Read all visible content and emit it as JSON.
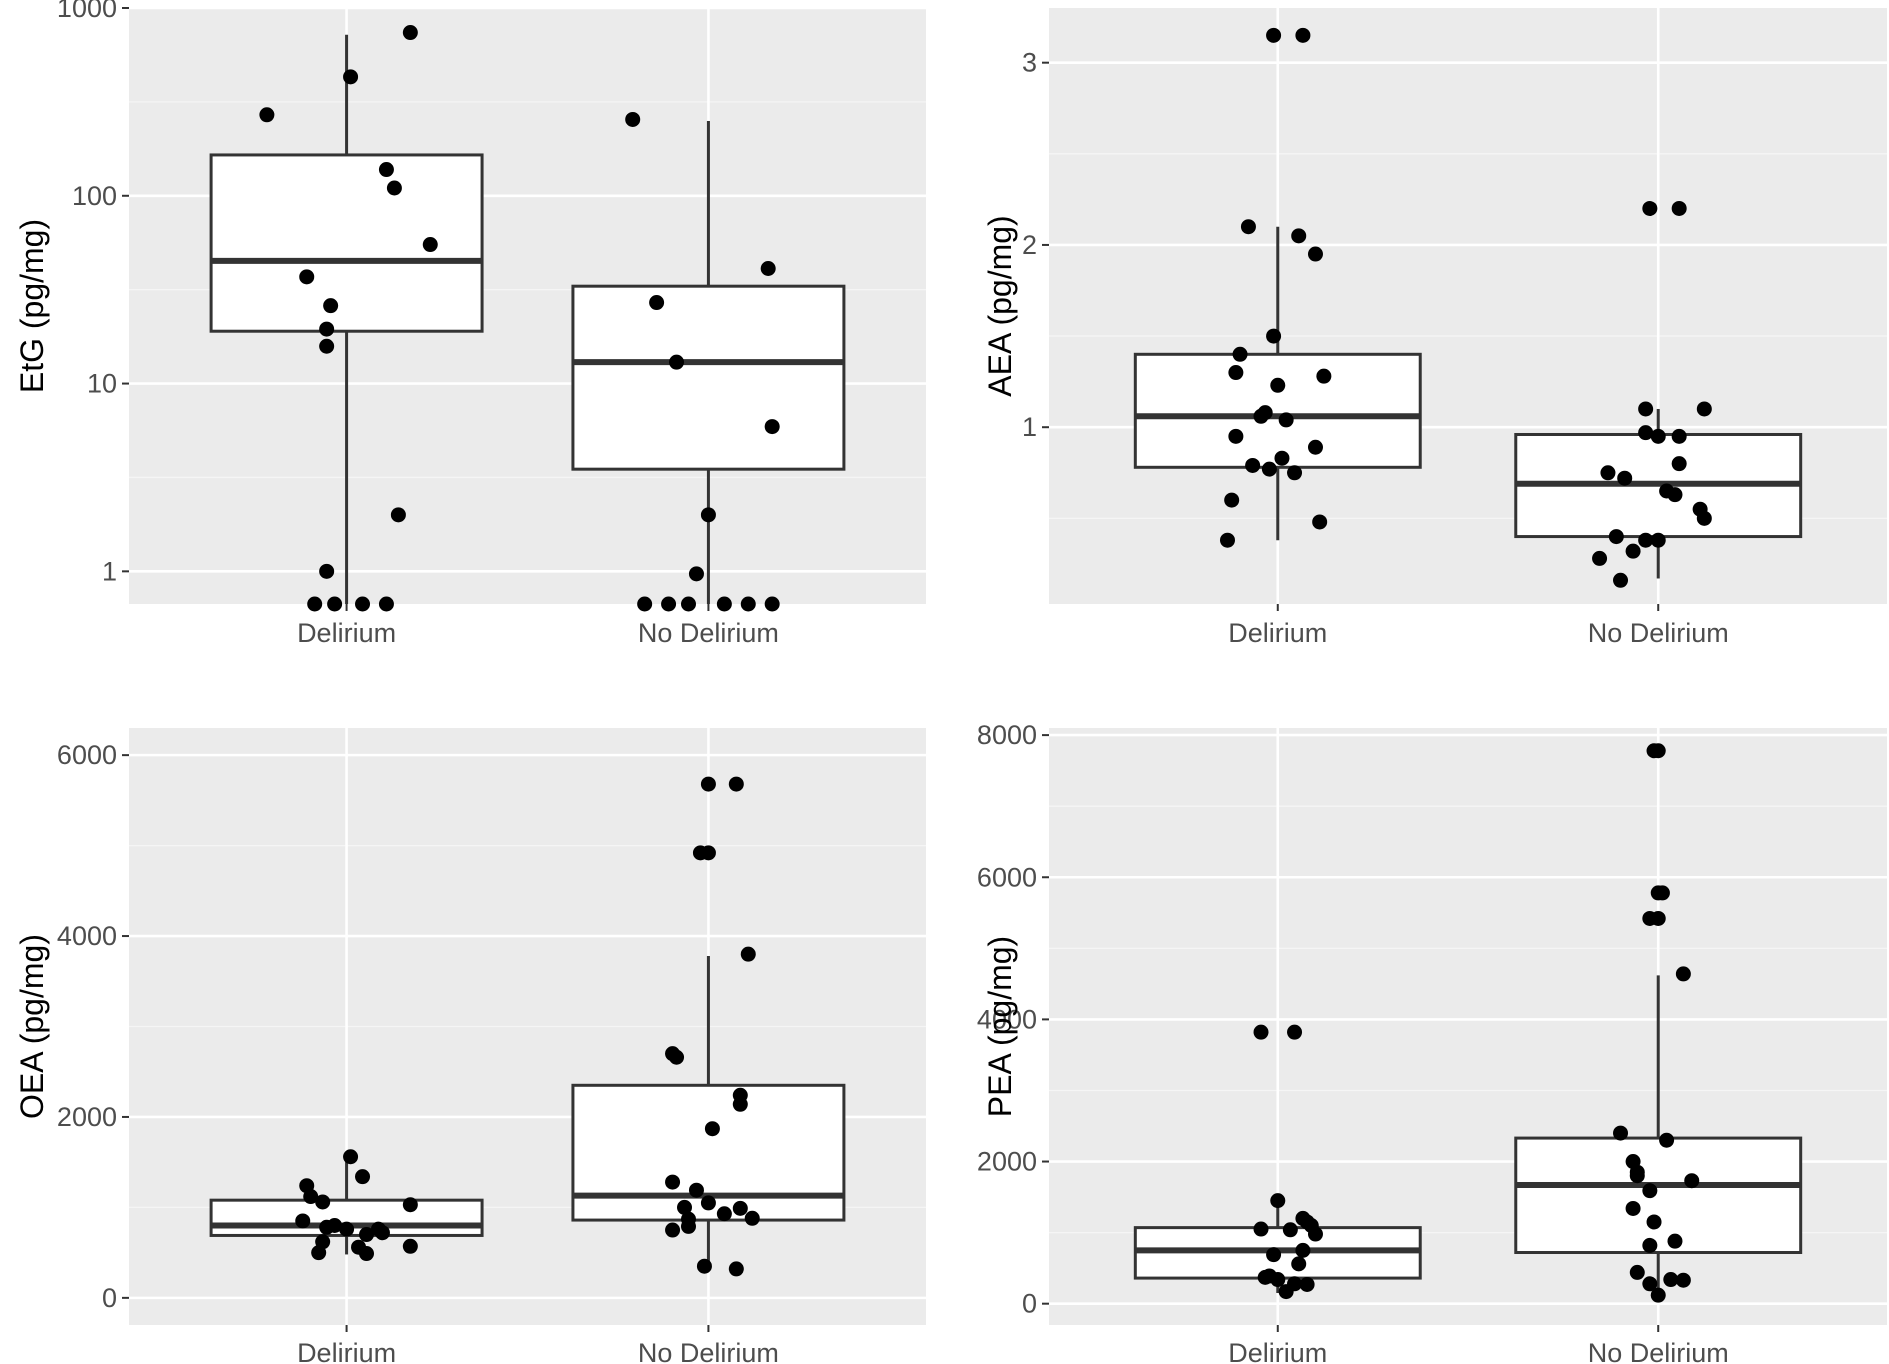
{
  "chart_data": [
    {
      "type": "box",
      "panel": "top-left",
      "ylabel": "EtG (pg/mg)",
      "yscale": "log10",
      "ylim": [
        0.67,
        1000
      ],
      "yticks": [
        1,
        10,
        100,
        1000
      ],
      "ytick_labels": [
        "1",
        "10",
        "100",
        "1000"
      ],
      "categories": [
        "Delirium",
        "No Delirium"
      ],
      "boxes": [
        {
          "q1": 19,
          "median": 45,
          "q3": 165,
          "whisker_low": 0.67,
          "whisker_high": 720
        },
        {
          "q1": 3.5,
          "median": 13,
          "q3": 33,
          "whisker_low": 0.67,
          "whisker_high": 250
        }
      ],
      "points": [
        [
          {
            "y": 740,
            "dx": 0.16
          },
          {
            "y": 430,
            "dx": 0.01
          },
          {
            "y": 270,
            "dx": -0.2
          },
          {
            "y": 138,
            "dx": 0.1
          },
          {
            "y": 110,
            "dx": 0.12
          },
          {
            "y": 55,
            "dx": 0.21
          },
          {
            "y": 37,
            "dx": -0.1
          },
          {
            "y": 26,
            "dx": -0.04
          },
          {
            "y": 19.5,
            "dx": -0.05
          },
          {
            "y": 15.8,
            "dx": -0.05
          },
          {
            "y": 2.0,
            "dx": 0.13
          },
          {
            "y": 1.0,
            "dx": -0.05
          },
          {
            "y": 0.67,
            "dx": -0.08
          },
          {
            "y": 0.67,
            "dx": -0.03
          },
          {
            "y": 0.67,
            "dx": 0.04
          },
          {
            "y": 0.67,
            "dx": 0.1
          }
        ],
        [
          {
            "y": 255,
            "dx": -0.19
          },
          {
            "y": 41,
            "dx": 0.15
          },
          {
            "y": 27,
            "dx": -0.13
          },
          {
            "y": 13,
            "dx": -0.08
          },
          {
            "y": 5.9,
            "dx": 0.16
          },
          {
            "y": 2.0,
            "dx": 0.0
          },
          {
            "y": 0.97,
            "dx": -0.03
          },
          {
            "y": 0.67,
            "dx": -0.16
          },
          {
            "y": 0.67,
            "dx": -0.1
          },
          {
            "y": 0.67,
            "dx": -0.05
          },
          {
            "y": 0.67,
            "dx": 0.04
          },
          {
            "y": 0.67,
            "dx": 0.1
          },
          {
            "y": 0.67,
            "dx": 0.16
          }
        ]
      ]
    },
    {
      "type": "box",
      "panel": "top-right",
      "ylabel": "AEA (pg/mg)",
      "yscale": "linear",
      "ylim": [
        0.03,
        3.3
      ],
      "yticks": [
        1,
        2,
        3
      ],
      "ytick_labels": [
        "1",
        "2",
        "3"
      ],
      "minor_yticks": [
        0.5,
        1.5,
        2.5
      ],
      "categories": [
        "Delirium",
        "No Delirium"
      ],
      "boxes": [
        {
          "q1": 0.78,
          "median": 1.06,
          "q3": 1.4,
          "whisker_low": 0.38,
          "whisker_high": 2.1
        },
        {
          "q1": 0.4,
          "median": 0.69,
          "q3": 0.96,
          "whisker_low": 0.17,
          "whisker_high": 1.1
        }
      ],
      "points": [
        [
          {
            "y": 3.15,
            "dx": -0.01
          },
          {
            "y": 3.15,
            "dx": 0.06
          },
          {
            "y": 2.1,
            "dx": -0.07
          },
          {
            "y": 2.05,
            "dx": 0.05
          },
          {
            "y": 1.95,
            "dx": 0.09
          },
          {
            "y": 1.5,
            "dx": -0.01
          },
          {
            "y": 1.4,
            "dx": -0.09
          },
          {
            "y": 1.3,
            "dx": -0.1
          },
          {
            "y": 1.28,
            "dx": 0.11
          },
          {
            "y": 1.23,
            "dx": 0.0
          },
          {
            "y": 1.08,
            "dx": -0.03
          },
          {
            "y": 1.06,
            "dx": -0.04
          },
          {
            "y": 1.04,
            "dx": 0.02
          },
          {
            "y": 0.95,
            "dx": -0.1
          },
          {
            "y": 0.89,
            "dx": 0.09
          },
          {
            "y": 0.83,
            "dx": 0.01
          },
          {
            "y": 0.79,
            "dx": -0.06
          },
          {
            "y": 0.77,
            "dx": -0.02
          },
          {
            "y": 0.75,
            "dx": 0.04
          },
          {
            "y": 0.6,
            "dx": -0.11
          },
          {
            "y": 0.48,
            "dx": 0.1
          },
          {
            "y": 0.38,
            "dx": -0.12
          }
        ],
        [
          {
            "y": 2.2,
            "dx": -0.02
          },
          {
            "y": 2.2,
            "dx": 0.05
          },
          {
            "y": 1.1,
            "dx": -0.03
          },
          {
            "y": 1.1,
            "dx": 0.11
          },
          {
            "y": 0.97,
            "dx": -0.03
          },
          {
            "y": 0.95,
            "dx": 0.0
          },
          {
            "y": 0.95,
            "dx": 0.05
          },
          {
            "y": 0.8,
            "dx": 0.05
          },
          {
            "y": 0.75,
            "dx": -0.12
          },
          {
            "y": 0.72,
            "dx": -0.08
          },
          {
            "y": 0.65,
            "dx": 0.02
          },
          {
            "y": 0.63,
            "dx": 0.04
          },
          {
            "y": 0.55,
            "dx": 0.1
          },
          {
            "y": 0.5,
            "dx": 0.11
          },
          {
            "y": 0.4,
            "dx": -0.1
          },
          {
            "y": 0.38,
            "dx": -0.03
          },
          {
            "y": 0.38,
            "dx": 0.0
          },
          {
            "y": 0.32,
            "dx": -0.06
          },
          {
            "y": 0.28,
            "dx": -0.14
          },
          {
            "y": 0.16,
            "dx": -0.09
          }
        ]
      ]
    },
    {
      "type": "box",
      "panel": "bottom-left",
      "ylabel": "OEA (pg/mg)",
      "yscale": "linear",
      "ylim": [
        -300,
        6300
      ],
      "yticks": [
        0,
        2000,
        4000,
        6000
      ],
      "ytick_labels": [
        "0",
        "2000",
        "4000",
        "6000"
      ],
      "minor_yticks": [
        1000,
        3000,
        5000
      ],
      "categories": [
        "Delirium",
        "No Delirium"
      ],
      "boxes": [
        {
          "q1": 690,
          "median": 800,
          "q3": 1080,
          "whisker_low": 480,
          "whisker_high": 1560
        },
        {
          "q1": 860,
          "median": 1130,
          "q3": 2350,
          "whisker_low": 300,
          "whisker_high": 3780
        }
      ],
      "points": [
        [
          {
            "y": 1560,
            "dx": 0.01
          },
          {
            "y": 1340,
            "dx": 0.04
          },
          {
            "y": 1240,
            "dx": -0.1
          },
          {
            "y": 1120,
            "dx": -0.09
          },
          {
            "y": 1060,
            "dx": -0.06
          },
          {
            "y": 1030,
            "dx": 0.16
          },
          {
            "y": 850,
            "dx": -0.11
          },
          {
            "y": 800,
            "dx": -0.03
          },
          {
            "y": 780,
            "dx": -0.05
          },
          {
            "y": 760,
            "dx": 0.0
          },
          {
            "y": 760,
            "dx": 0.08
          },
          {
            "y": 720,
            "dx": 0.09
          },
          {
            "y": 700,
            "dx": 0.05
          },
          {
            "y": 620,
            "dx": -0.06
          },
          {
            "y": 570,
            "dx": 0.16
          },
          {
            "y": 560,
            "dx": 0.03
          },
          {
            "y": 500,
            "dx": -0.07
          },
          {
            "y": 490,
            "dx": 0.05
          }
        ],
        [
          {
            "y": 5680,
            "dx": 0.0
          },
          {
            "y": 5680,
            "dx": 0.07
          },
          {
            "y": 4920,
            "dx": -0.02
          },
          {
            "y": 4920,
            "dx": 0.0
          },
          {
            "y": 3800,
            "dx": 0.1
          },
          {
            "y": 2700,
            "dx": -0.09
          },
          {
            "y": 2660,
            "dx": -0.08
          },
          {
            "y": 2240,
            "dx": 0.08
          },
          {
            "y": 2140,
            "dx": 0.08
          },
          {
            "y": 1870,
            "dx": 0.01
          },
          {
            "y": 1280,
            "dx": -0.09
          },
          {
            "y": 1190,
            "dx": -0.03
          },
          {
            "y": 1050,
            "dx": 0.0
          },
          {
            "y": 1000,
            "dx": -0.06
          },
          {
            "y": 990,
            "dx": 0.08
          },
          {
            "y": 930,
            "dx": 0.04
          },
          {
            "y": 880,
            "dx": 0.11
          },
          {
            "y": 870,
            "dx": -0.05
          },
          {
            "y": 790,
            "dx": -0.05
          },
          {
            "y": 750,
            "dx": -0.09
          },
          {
            "y": 350,
            "dx": -0.01
          },
          {
            "y": 320,
            "dx": 0.07
          }
        ]
      ]
    },
    {
      "type": "box",
      "panel": "bottom-right",
      "ylabel": "PEA (pg/mg)",
      "yscale": "linear",
      "ylim": [
        -300,
        8100
      ],
      "yticks": [
        0,
        2000,
        4000,
        6000,
        8000
      ],
      "ytick_labels": [
        "0",
        "2000",
        "4000",
        "6000",
        "8000"
      ],
      "minor_yticks": [
        1000,
        3000,
        5000,
        7000
      ],
      "categories": [
        "Delirium",
        "No Delirium"
      ],
      "boxes": [
        {
          "q1": 360,
          "median": 750,
          "q3": 1070,
          "whisker_low": 150,
          "whisker_high": 1450
        },
        {
          "q1": 720,
          "median": 1670,
          "q3": 2330,
          "whisker_low": 100,
          "whisker_high": 4620
        }
      ],
      "points": [
        [
          {
            "y": 3820,
            "dx": -0.04
          },
          {
            "y": 3820,
            "dx": 0.04
          },
          {
            "y": 1450,
            "dx": 0.0
          },
          {
            "y": 1200,
            "dx": 0.06
          },
          {
            "y": 1150,
            "dx": 0.07
          },
          {
            "y": 1100,
            "dx": 0.08
          },
          {
            "y": 1050,
            "dx": -0.04
          },
          {
            "y": 1040,
            "dx": 0.03
          },
          {
            "y": 980,
            "dx": 0.09
          },
          {
            "y": 750,
            "dx": 0.06
          },
          {
            "y": 690,
            "dx": -0.01
          },
          {
            "y": 560,
            "dx": 0.05
          },
          {
            "y": 390,
            "dx": -0.02
          },
          {
            "y": 370,
            "dx": -0.03
          },
          {
            "y": 340,
            "dx": 0.0
          },
          {
            "y": 280,
            "dx": 0.04
          },
          {
            "y": 270,
            "dx": 0.07
          },
          {
            "y": 170,
            "dx": 0.02
          }
        ],
        [
          {
            "y": 7780,
            "dx": -0.01
          },
          {
            "y": 7780,
            "dx": 0.0
          },
          {
            "y": 5780,
            "dx": 0.0
          },
          {
            "y": 5780,
            "dx": 0.01
          },
          {
            "y": 5420,
            "dx": -0.02
          },
          {
            "y": 5420,
            "dx": 0.0
          },
          {
            "y": 4640,
            "dx": 0.06
          },
          {
            "y": 2400,
            "dx": -0.09
          },
          {
            "y": 2300,
            "dx": 0.02
          },
          {
            "y": 2000,
            "dx": -0.06
          },
          {
            "y": 1850,
            "dx": -0.05
          },
          {
            "y": 1800,
            "dx": -0.05
          },
          {
            "y": 1730,
            "dx": 0.08
          },
          {
            "y": 1590,
            "dx": -0.02
          },
          {
            "y": 1340,
            "dx": -0.06
          },
          {
            "y": 1150,
            "dx": -0.01
          },
          {
            "y": 880,
            "dx": 0.04
          },
          {
            "y": 820,
            "dx": -0.02
          },
          {
            "y": 440,
            "dx": -0.05
          },
          {
            "y": 340,
            "dx": 0.03
          },
          {
            "y": 330,
            "dx": 0.06
          },
          {
            "y": 280,
            "dx": -0.02
          },
          {
            "y": 120,
            "dx": 0.0
          }
        ]
      ]
    }
  ]
}
